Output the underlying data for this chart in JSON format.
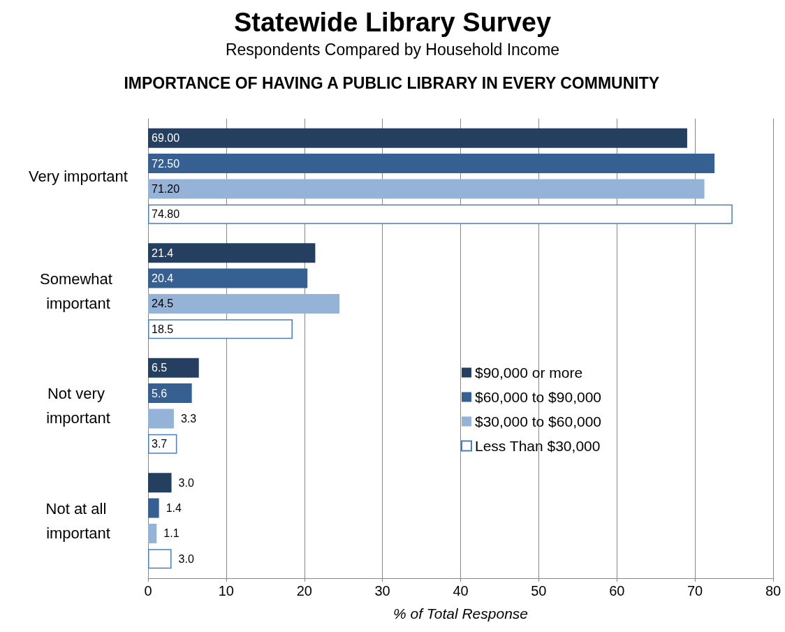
{
  "chart_data": {
    "type": "bar",
    "orientation": "horizontal",
    "title": "Statewide Library Survey",
    "subtitle": "Respondents Compared by Household Income",
    "annotations": [
      "IMPORTANCE OF HAVING A PUBLIC LIBRARY IN EVERY COMMUNITY"
    ],
    "categories": [
      "Very important",
      "Somewhat important",
      "Not very important",
      "Not at all important"
    ],
    "series": [
      {
        "name": "$90,000 or more",
        "color": "#253f61",
        "values": [
          69.0,
          21.4,
          6.5,
          3.0
        ],
        "value_labels": [
          "69.00",
          "21.4",
          "6.5",
          "3.0"
        ]
      },
      {
        "name": "$60,000 to $90,000",
        "color": "#376092",
        "values": [
          72.5,
          20.4,
          5.6,
          1.4
        ],
        "value_labels": [
          "72.50",
          "20.4",
          "5.6",
          "1.4"
        ]
      },
      {
        "name": "$30,000 to $60,000",
        "color": "#95b3d7",
        "values": [
          71.2,
          24.5,
          3.3,
          1.1
        ],
        "value_labels": [
          "71.20",
          "24.5",
          "3.3",
          "1.1"
        ]
      },
      {
        "name": "Less Than $30,000",
        "color": "#ffffff",
        "values": [
          74.8,
          18.5,
          3.7,
          3.0
        ],
        "value_labels": [
          "74.80",
          "18.5",
          "3.7",
          "3.0"
        ]
      }
    ],
    "xlabel": "% of Total Response",
    "xlim": [
      0,
      80
    ],
    "xticks": [
      0,
      10,
      20,
      30,
      40,
      50,
      60,
      70,
      80
    ],
    "grid": "x",
    "legend": "center right"
  }
}
